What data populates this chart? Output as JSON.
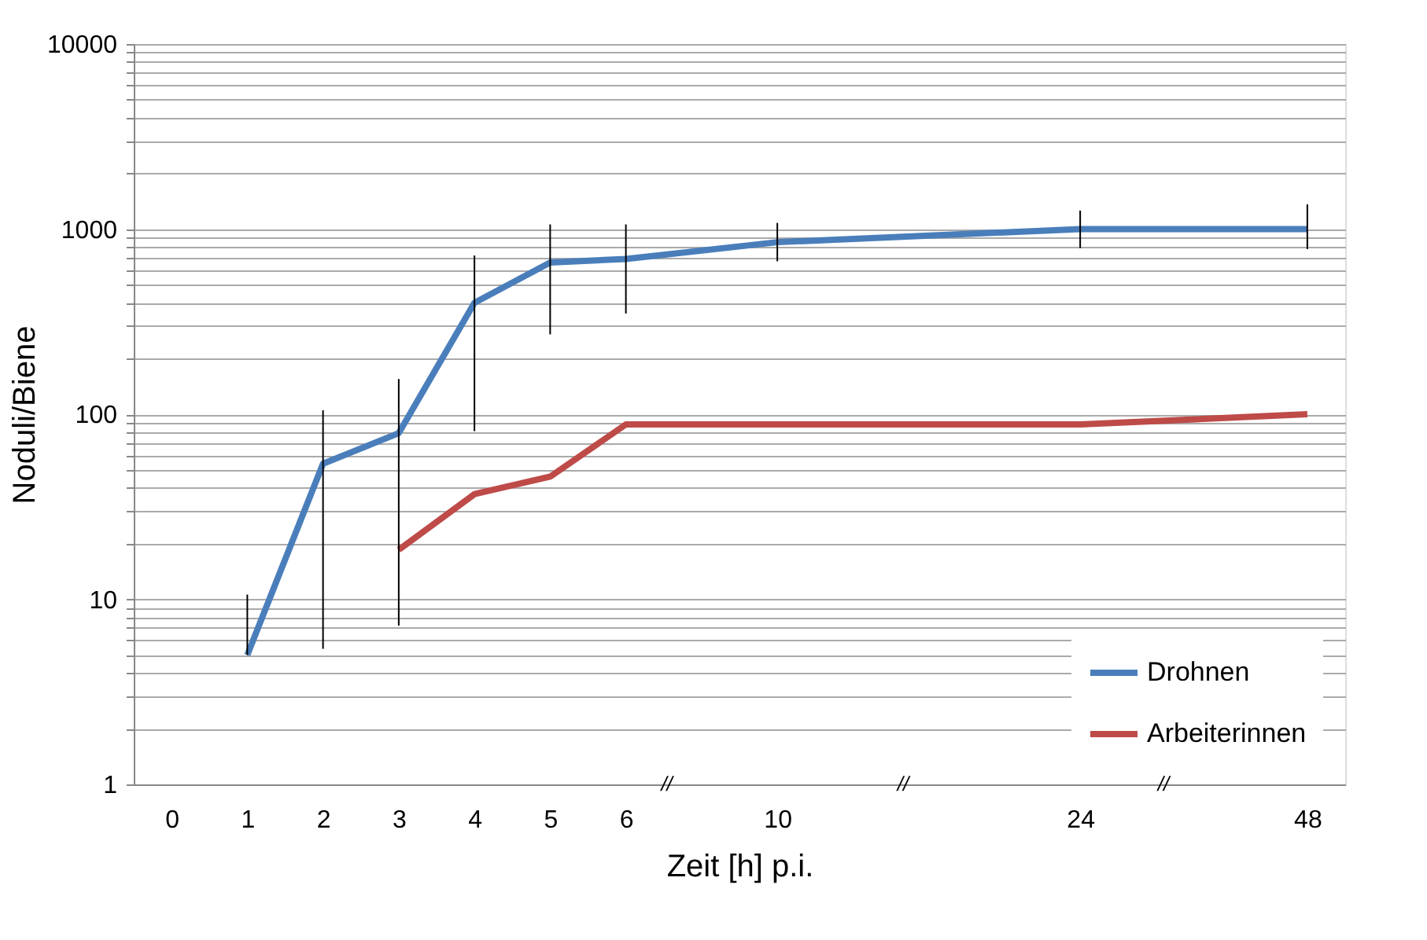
{
  "chart_data": {
    "type": "line",
    "xlabel": "Zeit [h] p.i.",
    "ylabel": "Noduli/Biene",
    "log": "y",
    "categories": [
      "0",
      "1",
      "2",
      "3",
      "4",
      "5",
      "6",
      null,
      "10",
      null,
      null,
      null,
      "24",
      null,
      null,
      "48"
    ],
    "ylim": [
      1,
      10000
    ],
    "yticks": [
      1,
      {
        "value": 2,
        "label": null
      },
      {
        "value": 3,
        "label": null
      },
      {
        "value": 4,
        "label": null
      },
      {
        "value": 5,
        "label": null
      },
      {
        "value": 6,
        "label": null
      },
      {
        "value": 7,
        "label": null
      },
      {
        "value": 8,
        "label": null
      },
      {
        "value": 9,
        "label": null
      },
      10,
      {
        "value": 20,
        "label": null
      },
      {
        "value": 30,
        "label": null
      },
      {
        "value": 40,
        "label": null
      },
      {
        "value": 50,
        "label": null
      },
      {
        "value": 60,
        "label": null
      },
      {
        "value": 70,
        "label": null
      },
      {
        "value": 80,
        "label": null
      },
      {
        "value": 90,
        "label": null
      },
      100,
      {
        "value": 200,
        "label": null
      },
      {
        "value": 300,
        "label": null
      },
      {
        "value": 400,
        "label": null
      },
      {
        "value": 500,
        "label": null
      },
      {
        "value": 600,
        "label": null
      },
      {
        "value": 700,
        "label": null
      },
      {
        "value": 800,
        "label": null
      },
      {
        "value": 900,
        "label": null
      },
      1000,
      {
        "value": 2000,
        "label": null
      },
      {
        "value": 3000,
        "label": null
      },
      {
        "value": 4000,
        "label": null
      },
      {
        "value": 5000,
        "label": null
      },
      {
        "value": 6000,
        "label": null
      },
      {
        "value": 7000,
        "label": null
      },
      {
        "value": 8000,
        "label": null
      },
      {
        "value": 9000,
        "label": null
      },
      10000
    ],
    "grid": "y",
    "legend": "bottom right",
    "marker": "none",
    "line_style": "solid",
    "series": [
      {
        "name": "Drohnen",
        "color": "#4a7ebb",
        "values": [
          null,
          5,
          54,
          79,
          400,
          660,
          690,
          null,
          850,
          null,
          null,
          null,
          1000,
          null,
          null,
          1000
        ],
        "errors": [
          null,
          [
            5,
            10.6
          ],
          [
            5.4,
            105
          ],
          [
            7.2,
            155
          ],
          [
            81,
            720
          ],
          [
            270,
            1060
          ],
          [
            350,
            1060
          ],
          null,
          [
            670,
            1080
          ],
          null,
          null,
          null,
          [
            790,
            1260
          ],
          null,
          null,
          [
            780,
            1360
          ]
        ]
      },
      {
        "name": "Arbeiterinnen",
        "color": "#be4b48",
        "values": [
          null,
          null,
          null,
          18.5,
          37,
          46,
          88,
          null,
          88,
          null,
          null,
          null,
          88,
          null,
          null,
          100
        ]
      }
    ],
    "annotations": [
      "//",
      "//",
      "//"
    ]
  }
}
